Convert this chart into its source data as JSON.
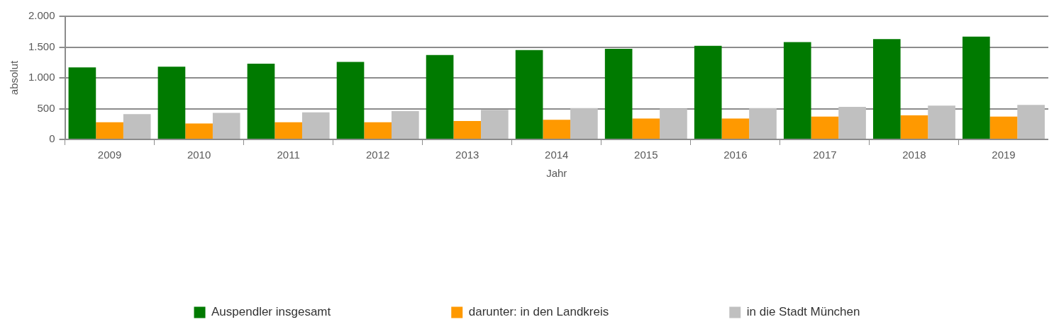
{
  "chart_data": {
    "type": "bar",
    "xlabel": "Jahr",
    "ylabel": "absolut",
    "categories": [
      "2009",
      "2010",
      "2011",
      "2012",
      "2013",
      "2014",
      "2015",
      "2016",
      "2017",
      "2018",
      "2019"
    ],
    "series": [
      {
        "name": "Auspendler insgesamt",
        "color": "#007a00",
        "values": [
          1170,
          1180,
          1230,
          1260,
          1370,
          1450,
          1470,
          1520,
          1580,
          1630,
          1670
        ]
      },
      {
        "name": "darunter: in den Landkreis",
        "color": "#ff9900",
        "values": [
          280,
          260,
          280,
          280,
          300,
          320,
          340,
          340,
          370,
          390,
          370
        ]
      },
      {
        "name": "in die Stadt München",
        "color": "#c0c0c0",
        "values": [
          410,
          430,
          440,
          460,
          480,
          510,
          500,
          510,
          530,
          550,
          560
        ]
      }
    ],
    "ylim": [
      0,
      2000
    ],
    "yticks": [
      0,
      {
        "value": 500,
        "label": "500"
      },
      {
        "value": 1000,
        "label": "1.000"
      },
      {
        "value": 1500,
        "label": "1.500"
      },
      {
        "value": 2000,
        "label": "2.000"
      }
    ],
    "grid": "y",
    "legend": "bottom"
  }
}
